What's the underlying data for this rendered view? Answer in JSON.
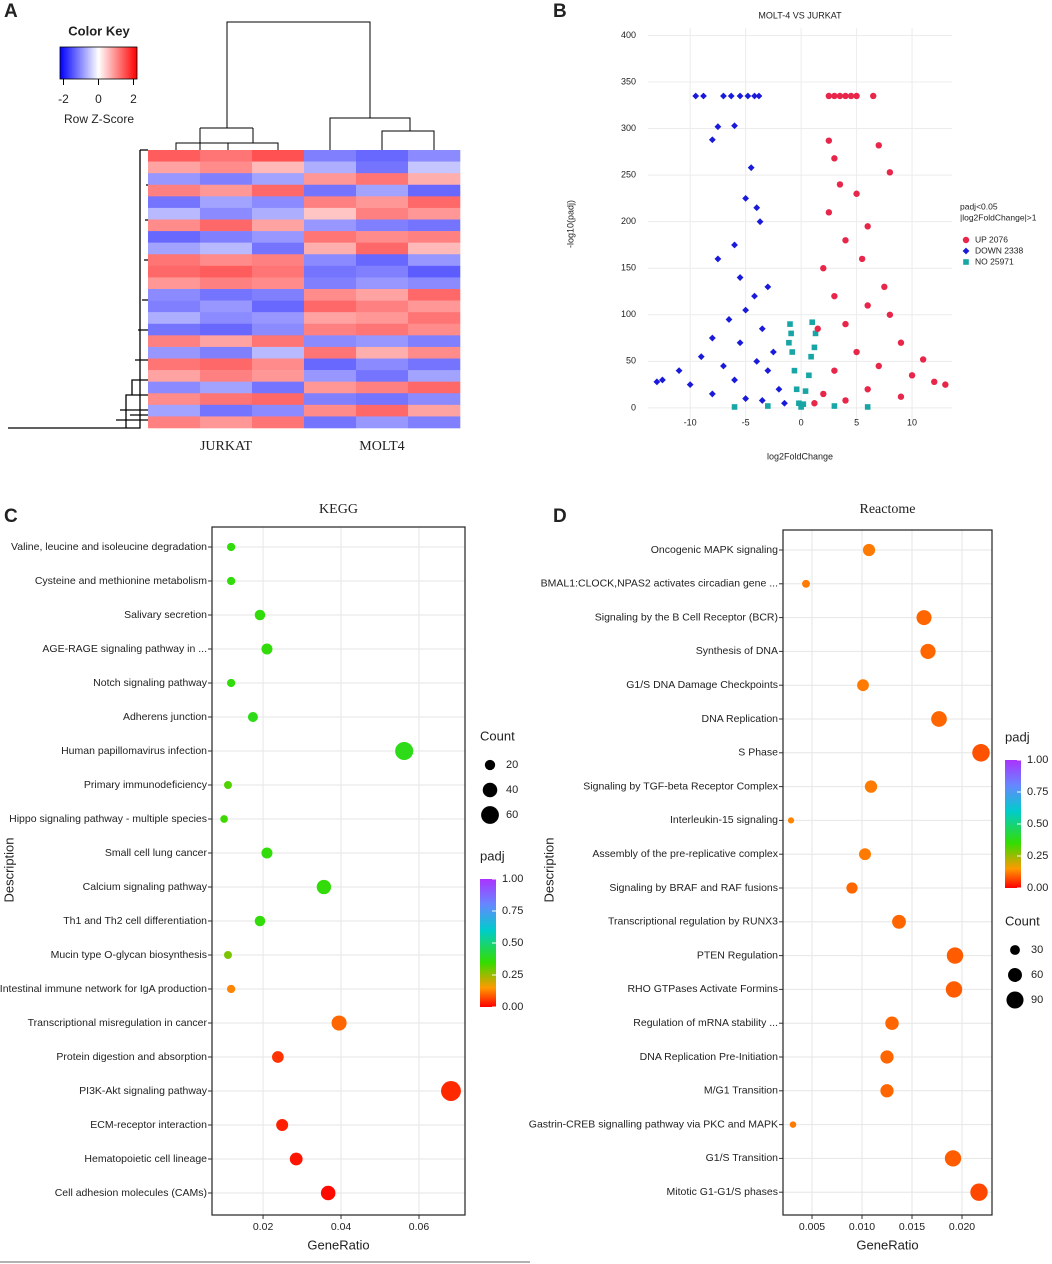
{
  "chart_data": [
    {
      "type": "heatmap",
      "panel_label": "A",
      "key_title": "Color Key",
      "key_label": "Row Z-Score",
      "key_ticks": [
        -2,
        0,
        2
      ],
      "zlim": [
        -2.2,
        2.2
      ],
      "colors": [
        "#0000ff",
        "#ffffff",
        "#ff0000"
      ],
      "column_groups": [
        "JURKAT",
        "MOLT4"
      ],
      "values": [
        [
          1.4,
          1.2,
          1.5,
          -1.1,
          -1.3,
          -1.0
        ],
        [
          0.8,
          1.0,
          0.6,
          -0.7,
          -1.2,
          -0.5
        ],
        [
          -0.9,
          -1.1,
          -0.8,
          0.9,
          1.2,
          0.7
        ],
        [
          1.1,
          0.9,
          1.3,
          -1.2,
          -0.8,
          -1.3
        ],
        [
          -1.2,
          -0.8,
          -1.0,
          1.1,
          0.9,
          1.3
        ],
        [
          -0.6,
          -1.0,
          -0.7,
          0.5,
          1.1,
          0.9
        ],
        [
          1.0,
          1.3,
          0.8,
          -0.9,
          -1.1,
          -1.2
        ],
        [
          -1.3,
          -1.1,
          -0.9,
          1.2,
          1.0,
          1.1
        ],
        [
          -0.8,
          -0.6,
          -1.2,
          0.7,
          1.3,
          0.6
        ],
        [
          1.2,
          1.0,
          1.1,
          -1.0,
          -1.3,
          -0.9
        ],
        [
          1.3,
          1.4,
          1.2,
          -1.2,
          -1.1,
          -1.4
        ],
        [
          0.9,
          1.1,
          1.0,
          -1.1,
          -0.9,
          -1.0
        ],
        [
          -1.0,
          -1.2,
          -1.1,
          1.0,
          0.8,
          1.3
        ],
        [
          -1.1,
          -0.9,
          -1.3,
          1.3,
          1.1,
          0.9
        ],
        [
          -0.7,
          -1.0,
          -0.9,
          0.8,
          0.9,
          1.2
        ],
        [
          -1.2,
          -1.3,
          -1.0,
          1.1,
          1.2,
          1.0
        ],
        [
          1.1,
          0.8,
          1.2,
          -1.0,
          -0.9,
          -1.1
        ],
        [
          -0.9,
          -1.1,
          -0.6,
          1.2,
          0.7,
          1.0
        ],
        [
          1.2,
          1.3,
          1.0,
          -1.3,
          -1.0,
          -1.2
        ],
        [
          0.8,
          1.1,
          0.9,
          -0.9,
          -1.2,
          -0.8
        ],
        [
          -1.0,
          -0.8,
          -1.2,
          0.9,
          1.1,
          1.3
        ],
        [
          1.0,
          1.2,
          1.3,
          -1.1,
          -1.2,
          -1.0
        ],
        [
          -0.8,
          -1.2,
          -1.0,
          1.0,
          1.3,
          0.8
        ],
        [
          1.1,
          0.9,
          1.2,
          -1.2,
          -0.9,
          -1.1
        ]
      ]
    },
    {
      "type": "scatter",
      "panel_label": "B",
      "title": "MOLT-4 VS JURKAT",
      "x_label": "log2FoldChange",
      "y_label": "-log10(padj)",
      "xlim": [
        -13.8,
        13.6
      ],
      "ylim": [
        -13,
        408
      ],
      "xticks": [
        -10,
        -5,
        0,
        5,
        10
      ],
      "yticks": [
        0,
        50,
        100,
        150,
        200,
        250,
        300,
        350,
        400
      ],
      "grid": true,
      "legend_title": [
        "padj<0.05",
        "|log2FoldChange|>1"
      ],
      "legend_position": "right",
      "series": [
        {
          "name": "UP 2076",
          "color": "#e8264a",
          "marker": "circle",
          "x": [
            2.5,
            3,
            3.5,
            4,
            4.5,
            5,
            6.5,
            2.5,
            3,
            7,
            8,
            3.5,
            5,
            2.5,
            6,
            4,
            5.5,
            2,
            7.5,
            3,
            6,
            8,
            4,
            1.5,
            9,
            5,
            11,
            7,
            3,
            10,
            12,
            13,
            6,
            2,
            9,
            4,
            1.2
          ],
          "y": [
            335,
            335,
            335,
            335,
            335,
            335,
            335,
            287,
            268,
            282,
            253,
            240,
            230,
            210,
            195,
            180,
            160,
            150,
            130,
            120,
            110,
            100,
            90,
            85,
            70,
            60,
            52,
            45,
            40,
            35,
            28,
            25,
            20,
            15,
            12,
            8,
            5
          ]
        },
        {
          "name": "DOWN 2338",
          "color": "#1a1adb",
          "marker": "diamond",
          "x": [
            -9.5,
            -8.8,
            -7,
            -6.3,
            -5.5,
            -4.8,
            -4.2,
            -3.8,
            -7.5,
            -6,
            -8,
            -4.5,
            -5,
            -4,
            -3.7,
            -6,
            -7.5,
            -5.5,
            -3,
            -4.2,
            -5,
            -6.5,
            -3.5,
            -8,
            -5.5,
            -2.5,
            -9,
            -4,
            -11,
            -7,
            -12.5,
            -13,
            -10,
            -6,
            -3,
            -2,
            -8,
            -5,
            -3.5,
            -1.5
          ],
          "y": [
            335,
            335,
            335,
            335,
            335,
            335,
            335,
            335,
            302,
            303,
            288,
            258,
            225,
            215,
            200,
            175,
            160,
            140,
            130,
            120,
            105,
            95,
            85,
            75,
            70,
            60,
            55,
            50,
            40,
            45,
            30,
            28,
            25,
            30,
            40,
            20,
            15,
            10,
            8,
            5
          ]
        },
        {
          "name": "NO 25971",
          "color": "#17a5a5",
          "marker": "square",
          "x": [
            -1,
            -0.9,
            1,
            1.3,
            -0.8,
            0.9,
            -0.6,
            0.7,
            -0.4,
            0.4,
            -0.2,
            0.2,
            0,
            -3,
            3,
            -6,
            6,
            -1.1,
            1.2
          ],
          "y": [
            90,
            80,
            92,
            80,
            60,
            55,
            40,
            35,
            20,
            18,
            5,
            4,
            1,
            2,
            2,
            1,
            1,
            70,
            65
          ]
        }
      ]
    },
    {
      "type": "bubble",
      "panel_label": "C",
      "title": "KEGG",
      "x_label": "GeneRatio",
      "y_label": "Description",
      "xlim": [
        0.0069,
        0.0718
      ],
      "xticks": [
        0.02,
        0.04,
        0.06
      ],
      "grid": true,
      "categories": [
        "Valine, leucine and isoleucine degradation",
        "Cysteine and methionine metabolism",
        "Salivary secretion",
        "AGE-RAGE signaling pathway in ...",
        "Notch signaling pathway",
        "Adherens junction",
        "Human papillomavirus infection",
        "Primary immunodeficiency",
        "Hippo signaling pathway - multiple species",
        "Small cell lung cancer",
        "Calcium signaling pathway",
        "Th1 and Th2 cell differentiation",
        "Mucin type O-glycan biosynthesis",
        "Intestinal immune network for IgA production",
        "Transcriptional misregulation in cancer",
        "Protein digestion and absorption",
        "PI3K-Akt signaling pathway",
        "ECM-receptor interaction",
        "Hematopoietic cell lineage",
        "Cell adhesion molecules (CAMs)"
      ],
      "values": [
        0.0118,
        0.0118,
        0.0192,
        0.021,
        0.0118,
        0.0174,
        0.0562,
        0.011,
        0.01,
        0.021,
        0.0356,
        0.0192,
        0.011,
        0.0118,
        0.0395,
        0.0238,
        0.0682,
        0.0249,
        0.0285,
        0.0367
      ],
      "sizes": [
        13,
        13,
        21,
        23,
        13,
        19,
        62,
        12,
        11,
        23,
        39,
        21,
        12,
        13,
        43,
        26,
        75,
        27,
        31,
        40
      ],
      "color_values": [
        0.36,
        0.36,
        0.36,
        0.36,
        0.36,
        0.38,
        0.38,
        0.32,
        0.34,
        0.36,
        0.36,
        0.36,
        0.28,
        0.13,
        0.1,
        0.05,
        0.04,
        0.03,
        0.02,
        0.01
      ],
      "size_legend": {
        "title": "Count",
        "ticks": [
          20,
          40,
          60
        ]
      },
      "color_legend": {
        "title": "padj",
        "ticks": [
          {
            "value": 1,
            "label": "1.00"
          },
          {
            "value": 0.75,
            "label": "0.75"
          },
          {
            "value": 0.5,
            "label": "0.50"
          },
          {
            "value": 0.25,
            "label": "0.25"
          },
          {
            "value": 0,
            "label": "0.00"
          }
        ]
      },
      "colorscale": {
        "stops": [
          0,
          0.15,
          0.35,
          0.6,
          0.8,
          1
        ],
        "colors": [
          "#ff0000",
          "#ff9900",
          "#33dd00",
          "#00cccc",
          "#6688ff",
          "#aa33ff"
        ]
      }
    },
    {
      "type": "bubble",
      "panel_label": "D",
      "title": "Reactome",
      "x_label": "GeneRatio",
      "y_label": "Description",
      "xlim": [
        0.0021,
        0.023
      ],
      "xticks": [
        {
          "value": 0.005,
          "label": "0.005"
        },
        {
          "value": 0.01,
          "label": "0.010"
        },
        {
          "value": 0.015,
          "label": "0.015"
        },
        {
          "value": 0.02,
          "label": "0.020"
        }
      ],
      "grid": true,
      "categories": [
        "Oncogenic MAPK signaling",
        "BMAL1:CLOCK,NPAS2 activates circadian gene ...",
        "Signaling by the B Cell Receptor (BCR)",
        "Synthesis of DNA",
        "G1/S DNA Damage Checkpoints",
        "DNA Replication",
        "S Phase",
        "Signaling by TGF-beta Receptor Complex",
        "Interleukin-15 signaling",
        "Assembly of the pre-replicative complex",
        "Signaling by BRAF and RAF fusions",
        "Transcriptional regulation by RUNX3",
        "PTEN Regulation",
        "RHO GTPases Activate Formins",
        "Regulation of mRNA stability ...",
        "DNA Replication Pre-Initiation",
        "M/G1 Transition",
        "Gastrin-CREB signalling pathway via PKC and MAPK",
        "G1/S Transition",
        "Mitotic G1-G1/S phases"
      ],
      "values": [
        0.0107,
        0.0044,
        0.0162,
        0.0166,
        0.0101,
        0.0177,
        0.0219,
        0.0109,
        0.0029,
        0.0103,
        0.009,
        0.0137,
        0.0193,
        0.0192,
        0.013,
        0.0125,
        0.0125,
        0.0031,
        0.0191,
        0.0217
      ],
      "sizes": [
        46,
        19,
        70,
        71,
        43,
        76,
        95,
        47,
        12,
        44,
        39,
        59,
        83,
        83,
        56,
        54,
        54,
        13,
        82,
        93
      ],
      "color_values": [
        0.12,
        0.12,
        0.1,
        0.1,
        0.12,
        0.1,
        0.08,
        0.12,
        0.13,
        0.12,
        0.1,
        0.1,
        0.09,
        0.09,
        0.1,
        0.1,
        0.1,
        0.12,
        0.09,
        0.07
      ],
      "size_legend": {
        "title": "Count",
        "ticks": [
          30,
          60,
          90
        ]
      },
      "color_legend": {
        "title": "padj",
        "ticks": [
          {
            "value": 1,
            "label": "1.00"
          },
          {
            "value": 0.75,
            "label": "0.75"
          },
          {
            "value": 0.5,
            "label": "0.50"
          },
          {
            "value": 0.25,
            "label": "0.25"
          },
          {
            "value": 0,
            "label": "0.00"
          }
        ]
      },
      "colorscale": {
        "stops": [
          0,
          0.15,
          0.35,
          0.6,
          0.8,
          1
        ],
        "colors": [
          "#ff0000",
          "#ff9900",
          "#33dd00",
          "#00cccc",
          "#6688ff",
          "#aa33ff"
        ]
      }
    }
  ]
}
